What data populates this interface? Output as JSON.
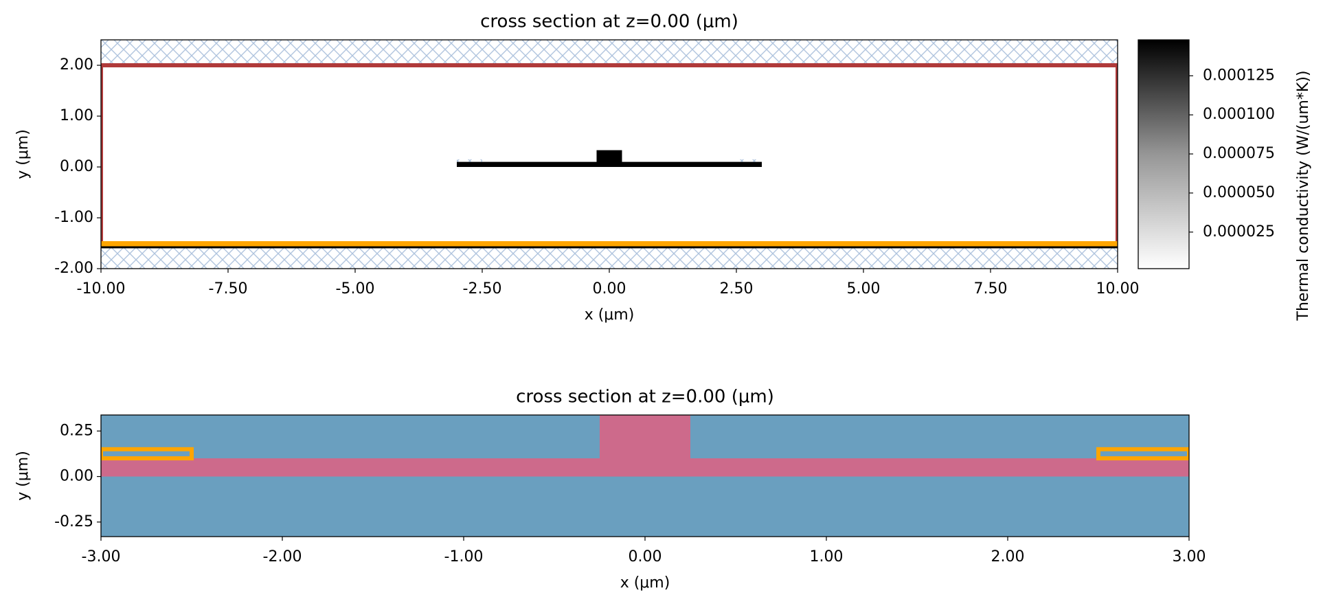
{
  "chart_data": [
    {
      "type": "structure",
      "title": "cross section at z=0.00 (μm)",
      "x_label": "x (μm)",
      "y_label": "y (μm)",
      "xlim": [
        -10,
        10
      ],
      "ylim": [
        -2,
        2.5
      ],
      "xticks": [
        {
          "value": -10,
          "label": "-10.00"
        },
        {
          "value": -7.5,
          "label": "-7.50"
        },
        {
          "value": -5,
          "label": "-5.00"
        },
        {
          "value": -2.5,
          "label": "-2.50"
        },
        {
          "value": 0,
          "label": "0.00"
        },
        {
          "value": 2.5,
          "label": "2.50"
        },
        {
          "value": 5,
          "label": "5.00"
        },
        {
          "value": 7.5,
          "label": "7.50"
        },
        {
          "value": 10,
          "label": "10.00"
        }
      ],
      "yticks": [
        {
          "value": -2,
          "label": "-2.00"
        },
        {
          "value": -1,
          "label": "-1.00"
        },
        {
          "value": 0,
          "label": "0.00"
        },
        {
          "value": 1,
          "label": "1.00"
        },
        {
          "value": 2,
          "label": "2.00"
        }
      ],
      "shapes": [
        {
          "x": [
            -10,
            10
          ],
          "y": [
            2,
            2.5
          ],
          "hatch": "#b0c4de"
        },
        {
          "x": [
            -10,
            10
          ],
          "y": [
            -2,
            -1.58
          ],
          "hatch": "#b0c4de"
        },
        {
          "x": [
            -10,
            10
          ],
          "y": [
            -1.6,
            -1.52
          ],
          "fill": "#000000"
        },
        {
          "x": [
            -3,
            3
          ],
          "y": [
            0,
            0.1
          ],
          "fill": "#000000"
        },
        {
          "x": [
            -0.25,
            0.25
          ],
          "y": [
            0,
            0.33
          ],
          "fill": "#000000"
        },
        {
          "x": [
            -3,
            -2.5
          ],
          "y": [
            0.1,
            0.15
          ],
          "hatch": "#b0c4de"
        },
        {
          "x": [
            2.5,
            3
          ],
          "y": [
            0.1,
            0.15
          ],
          "hatch": "#b0c4de"
        },
        {
          "x": [
            -10,
            10
          ],
          "y": [
            -1.5,
            2
          ],
          "stroke": "#b03a3a"
        },
        {
          "x": [
            -10,
            10
          ],
          "y": [
            -1.52,
            -1.5
          ],
          "stroke": "#ffa500"
        }
      ],
      "colorbar": {
        "label": "Thermal conductivity (W/(um*K))",
        "cmap": "Greys",
        "clim": [
          1.6e-06,
          0.000148
        ],
        "ticks": [
          2.5e-05,
          {
            "value": 5e-05,
            "label": "0.000050"
          },
          7.5e-05,
          {
            "value": 0.0001,
            "label": "0.000100"
          },
          0.000125
        ]
      }
    },
    {
      "type": "structure",
      "title": "cross section at z=0.00 (μm)",
      "x_label": "x (μm)",
      "y_label": "y (μm)",
      "xlim": [
        -3,
        3
      ],
      "ylim": [
        -0.33,
        0.338
      ],
      "xticks": [
        {
          "value": -3,
          "label": "-3.00"
        },
        {
          "value": -2,
          "label": "-2.00"
        },
        {
          "value": -1,
          "label": "-1.00"
        },
        {
          "value": 0,
          "label": "0.00"
        },
        {
          "value": 1,
          "label": "1.00"
        },
        {
          "value": 2,
          "label": "2.00"
        },
        {
          "value": 3,
          "label": "3.00"
        }
      ],
      "yticks": [
        {
          "value": -0.25,
          "label": "-0.25"
        },
        {
          "value": 0,
          "label": "0.00"
        },
        {
          "value": 0.25,
          "label": "0.25"
        }
      ],
      "shapes": [
        {
          "x": [
            -3,
            3
          ],
          "y": [
            -0.33,
            0.338
          ],
          "fill": "#6a9fbf"
        },
        {
          "x": [
            -3,
            3
          ],
          "y": [
            0,
            0.1
          ],
          "fill": "#cd6a8b"
        },
        {
          "x": [
            -0.25,
            0.25
          ],
          "y": [
            0,
            0.338
          ],
          "fill": "#cd6a8b"
        },
        {
          "x": [
            -3,
            -2.5
          ],
          "y": [
            0.1,
            0.15
          ],
          "stroke": "#ffa500"
        },
        {
          "x": [
            2.5,
            3
          ],
          "y": [
            0.1,
            0.15
          ],
          "stroke": "#ffa500"
        },
        {
          "x": [
            -3,
            -2.5
          ],
          "y": [
            0.125,
            0.125
          ],
          "stroke": "#555555"
        },
        {
          "x": [
            2.5,
            3
          ],
          "y": [
            0.125,
            0.125
          ],
          "stroke": "#555555"
        }
      ]
    }
  ]
}
